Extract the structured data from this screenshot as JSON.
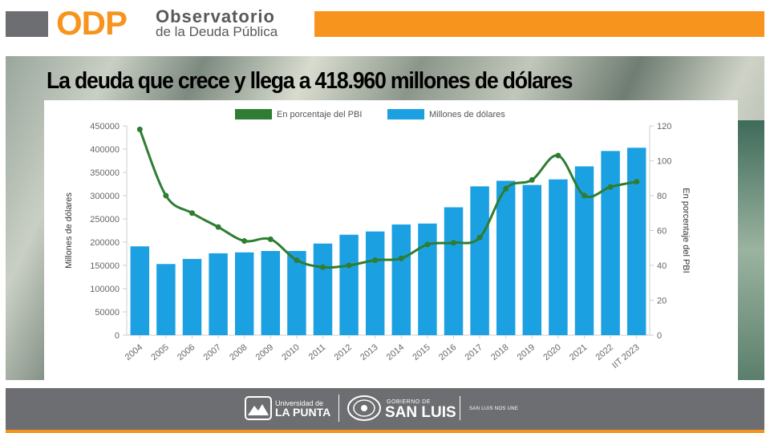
{
  "header": {
    "logo_text": "ODP",
    "org_name_line1": "Observatorio",
    "org_name_line2": "de la Deuda Pública",
    "colors": {
      "orange": "#f7941d",
      "gray": "#6d6e71"
    }
  },
  "headline": "La deuda que crece y llega a  418.960 millones de dólares",
  "chart_data": {
    "type": "bar",
    "categories": [
      "2004",
      "2005",
      "2006",
      "2007",
      "2008",
      "2009",
      "2010",
      "2011",
      "2012",
      "2013",
      "2014",
      "2015",
      "2016",
      "2017",
      "2018",
      "2019",
      "2020",
      "2021",
      "2022",
      "IIT 2023"
    ],
    "series": [
      {
        "name": "Millones de dólares",
        "type": "bar",
        "axis": "left",
        "color": "#1ba1e2",
        "values": [
          191000,
          153000,
          164000,
          176000,
          178000,
          181000,
          181000,
          197000,
          216000,
          223000,
          238000,
          240000,
          275000,
          320000,
          332000,
          323000,
          335000,
          363000,
          396000,
          403000
        ]
      },
      {
        "name": "En porcentaje del PBI",
        "type": "line",
        "axis": "right",
        "color": "#2e7d32",
        "values": [
          118,
          80,
          70,
          62,
          54,
          55,
          43,
          39,
          40,
          43,
          44,
          52,
          53,
          56,
          84,
          89,
          103,
          80,
          85,
          88
        ]
      }
    ],
    "ylabel": "Millones de dólares",
    "y2label": "En porcentaje del PBI",
    "ylim": [
      0,
      450000
    ],
    "y2lim": [
      0,
      120
    ],
    "yticks": [
      0,
      50000,
      100000,
      150000,
      200000,
      250000,
      300000,
      350000,
      400000,
      450000
    ],
    "y2ticks": [
      0,
      20,
      40,
      60,
      80,
      100,
      120
    ],
    "legend_position": "top-center",
    "grid": false
  },
  "footer": {
    "univ_line1": "Universidad de",
    "univ_line2": "LA PUNTA",
    "gob_line1": "GOBIERNO DE",
    "gob_line2": "SAN LUIS",
    "slogan": "SAN LUIS NOS UNE"
  }
}
